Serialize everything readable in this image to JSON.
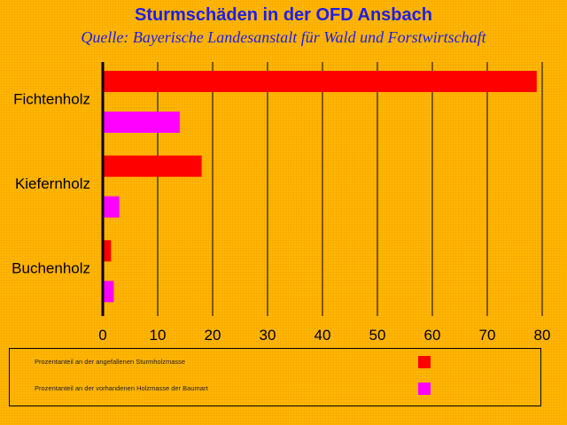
{
  "chart_data": {
    "type": "bar",
    "orientation": "horizontal",
    "title": "Sturmschäden in der OFD Ansbach",
    "subtitle": "Quelle: Bayerische Landesanstalt für Wald und Forstwirtschaft",
    "categories": [
      "Fichtenholz",
      "Kiefernholz",
      "Buchenholz"
    ],
    "series": [
      {
        "name": "Prozentanteil an der angefallenen Sturmholzmasse",
        "color": "#ff0000",
        "values": [
          79,
          18,
          1.5
        ]
      },
      {
        "name": "Prozentanteil an der vorhandenen Holzmasse der Baumart",
        "color": "#ff00ff",
        "values": [
          14,
          3,
          2
        ]
      }
    ],
    "xlim": [
      0,
      80
    ],
    "xticks": [
      "0",
      "10",
      "20",
      "30",
      "40",
      "50",
      "60",
      "70",
      "80"
    ],
    "grid": true,
    "legend": "bottom"
  }
}
